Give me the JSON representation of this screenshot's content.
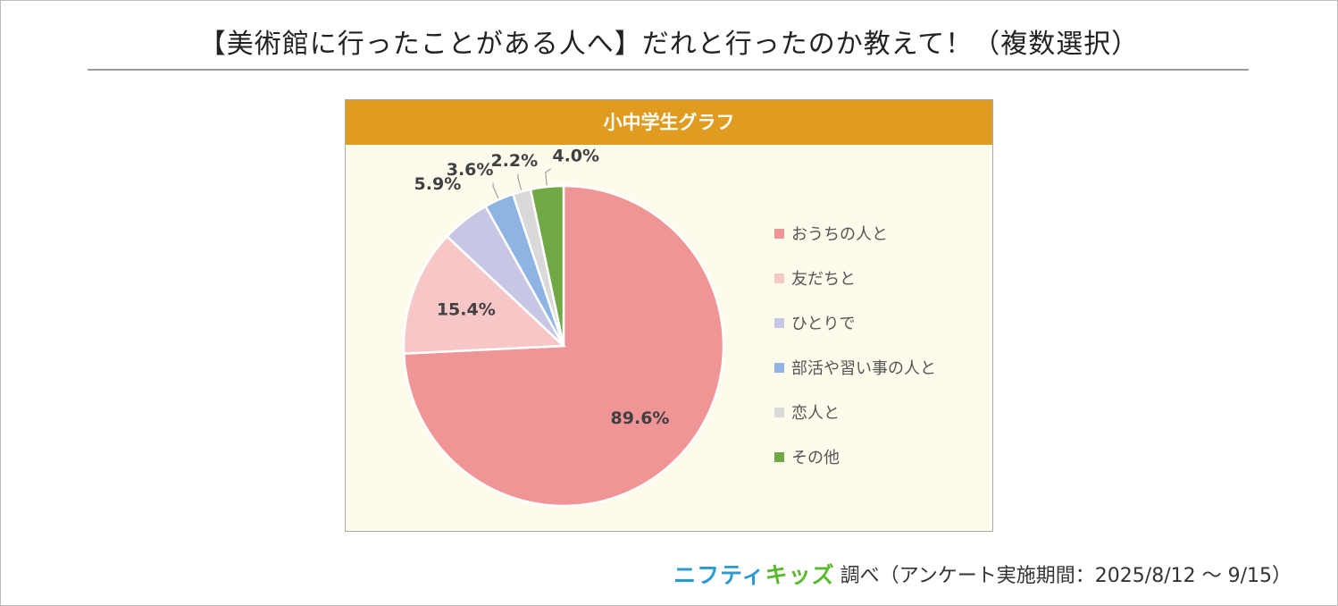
{
  "title": "【美術館に行ったことがある人へ】だれと行ったのか教えて！（複数選択）",
  "chart_data": {
    "type": "pie",
    "title": "小中学生グラフ",
    "categories": [
      "おうちの人と",
      "友だちと",
      "ひとりで",
      "部活や習い事の人と",
      "恋人と",
      "その他"
    ],
    "values": [
      89.6,
      15.4,
      5.9,
      3.6,
      2.2,
      4.0
    ],
    "value_labels": [
      "89.6%",
      "15.4%",
      "5.9%",
      "3.6%",
      "2.2%",
      "4.0%"
    ],
    "colors": [
      "#f09595",
      "#f7c6c6",
      "#c8c6e5",
      "#8db4e2",
      "#d9d9d9",
      "#6fa845"
    ],
    "start_angle_deg": 0,
    "direction": "clockwise",
    "legend_position": "right"
  },
  "footer": {
    "brand_part1": "ニフティ",
    "brand_part2": "キッズ",
    "source_text": "調べ（アンケート実施期間：2025/8/12 ～ 9/15）"
  }
}
